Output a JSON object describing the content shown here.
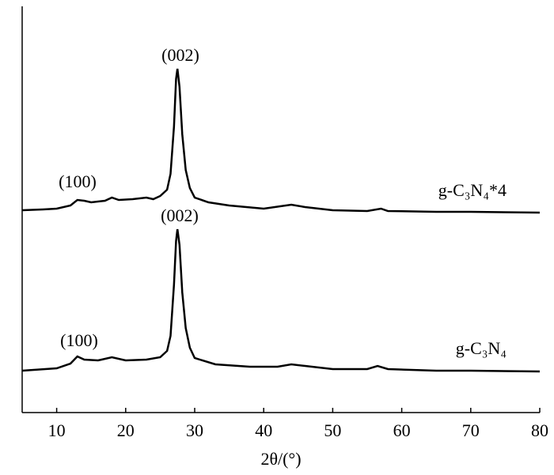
{
  "chart_data": {
    "type": "line",
    "x_label": "2θ/(°)",
    "xlim": [
      5,
      80
    ],
    "xticks": [
      10,
      20,
      30,
      40,
      50,
      60,
      70,
      80
    ],
    "ylim": [
      0,
      514
    ],
    "color": "#000000",
    "annotations": [
      "(100)",
      "(002)",
      "(100)",
      "(002)"
    ],
    "series": [
      {
        "name": "g-C₃N₄*4",
        "color": "#000000",
        "x": [
          5,
          8,
          10,
          12,
          13,
          14,
          15,
          17,
          18,
          19,
          21,
          23,
          24,
          25,
          26,
          26.5,
          27,
          27.3,
          27.5,
          27.8,
          28.2,
          28.7,
          29.3,
          30,
          32,
          35,
          40,
          44,
          46,
          50,
          55,
          57,
          58,
          65,
          70,
          80
        ],
        "values": [
          256,
          257,
          258,
          262,
          269,
          268,
          266,
          268,
          272,
          269,
          270,
          272,
          270,
          274,
          282,
          302,
          362,
          422,
          435,
          412,
          352,
          307,
          284,
          272,
          266,
          262,
          258,
          263,
          260,
          256,
          255,
          258,
          255,
          254,
          254,
          253
        ]
      },
      {
        "name": "g-C₃N₄",
        "color": "#000000",
        "x": [
          5,
          10,
          12,
          13,
          14,
          16,
          18,
          20,
          23,
          25,
          26,
          26.5,
          27,
          27.3,
          27.5,
          27.8,
          28.2,
          28.7,
          29.3,
          30,
          33,
          38,
          42,
          44,
          46,
          50,
          55,
          56.5,
          58,
          65,
          70,
          80
        ],
        "values": [
          53,
          56,
          62,
          71,
          67,
          66,
          70,
          66,
          67,
          70,
          78,
          97,
          162,
          217,
          232,
          212,
          152,
          107,
          82,
          69,
          61,
          58,
          58,
          61,
          59,
          55,
          55,
          59,
          55,
          53,
          53,
          52
        ]
      }
    ]
  }
}
